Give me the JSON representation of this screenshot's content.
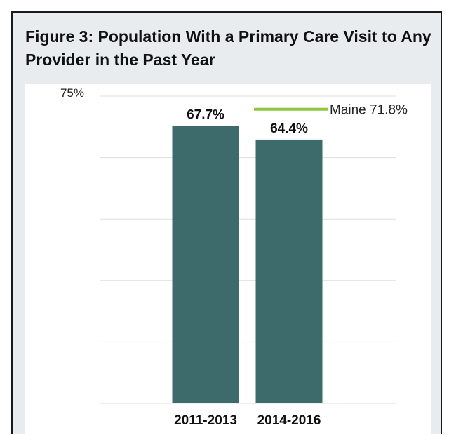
{
  "figure": {
    "title": "Figure 3: Population With a Primary Care Visit to Any Provider in the Past Year"
  },
  "chart_data": {
    "type": "bar",
    "title": "Figure 3: Population With a Primary Care Visit to Any Provider in the Past Year",
    "xlabel": "",
    "ylabel": "",
    "categories": [
      "2011-2013",
      "2014-2016"
    ],
    "values": [
      67.7,
      64.4
    ],
    "value_labels": [
      "67.7%",
      "64.4%"
    ],
    "ylim": [
      0,
      75
    ],
    "y_tick_labels": [
      {
        "value": 75,
        "label": "75%"
      }
    ],
    "gridlines": [
      0,
      15,
      30,
      45,
      60,
      75
    ],
    "grid": true,
    "legend": "none",
    "reference_line": {
      "value": 71.8,
      "label": "Maine 71.8%",
      "color": "#8dc63f"
    },
    "colors": {
      "bar": "#3d6b6b",
      "grid": "#dddddd",
      "text": "#111111"
    }
  }
}
